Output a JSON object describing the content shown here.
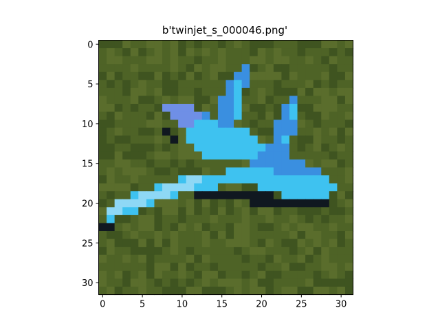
{
  "figure": {
    "title": "b'twinjet_s_000046.png'"
  },
  "image": {
    "pixels_wide": 32,
    "pixels_high": 32,
    "background_color": "#4a5e24",
    "subject": "light-blue toy twin-tail jet on green grass",
    "colors": {
      "grass_dark": "#3f5420",
      "grass_mid": "#4e6326",
      "grass_light": "#5a6d2c",
      "jet_light": "#8ed8f5",
      "jet_mid": "#3ec2f0",
      "jet_deep": "#3a8fe0",
      "jet_violet": "#6f8fe6",
      "shadow": "#101820"
    }
  },
  "axes": {
    "x_ticks": [
      "0",
      "5",
      "10",
      "15",
      "20",
      "25",
      "30"
    ],
    "y_ticks": [
      "0",
      "5",
      "10",
      "15",
      "20",
      "25",
      "30"
    ]
  }
}
